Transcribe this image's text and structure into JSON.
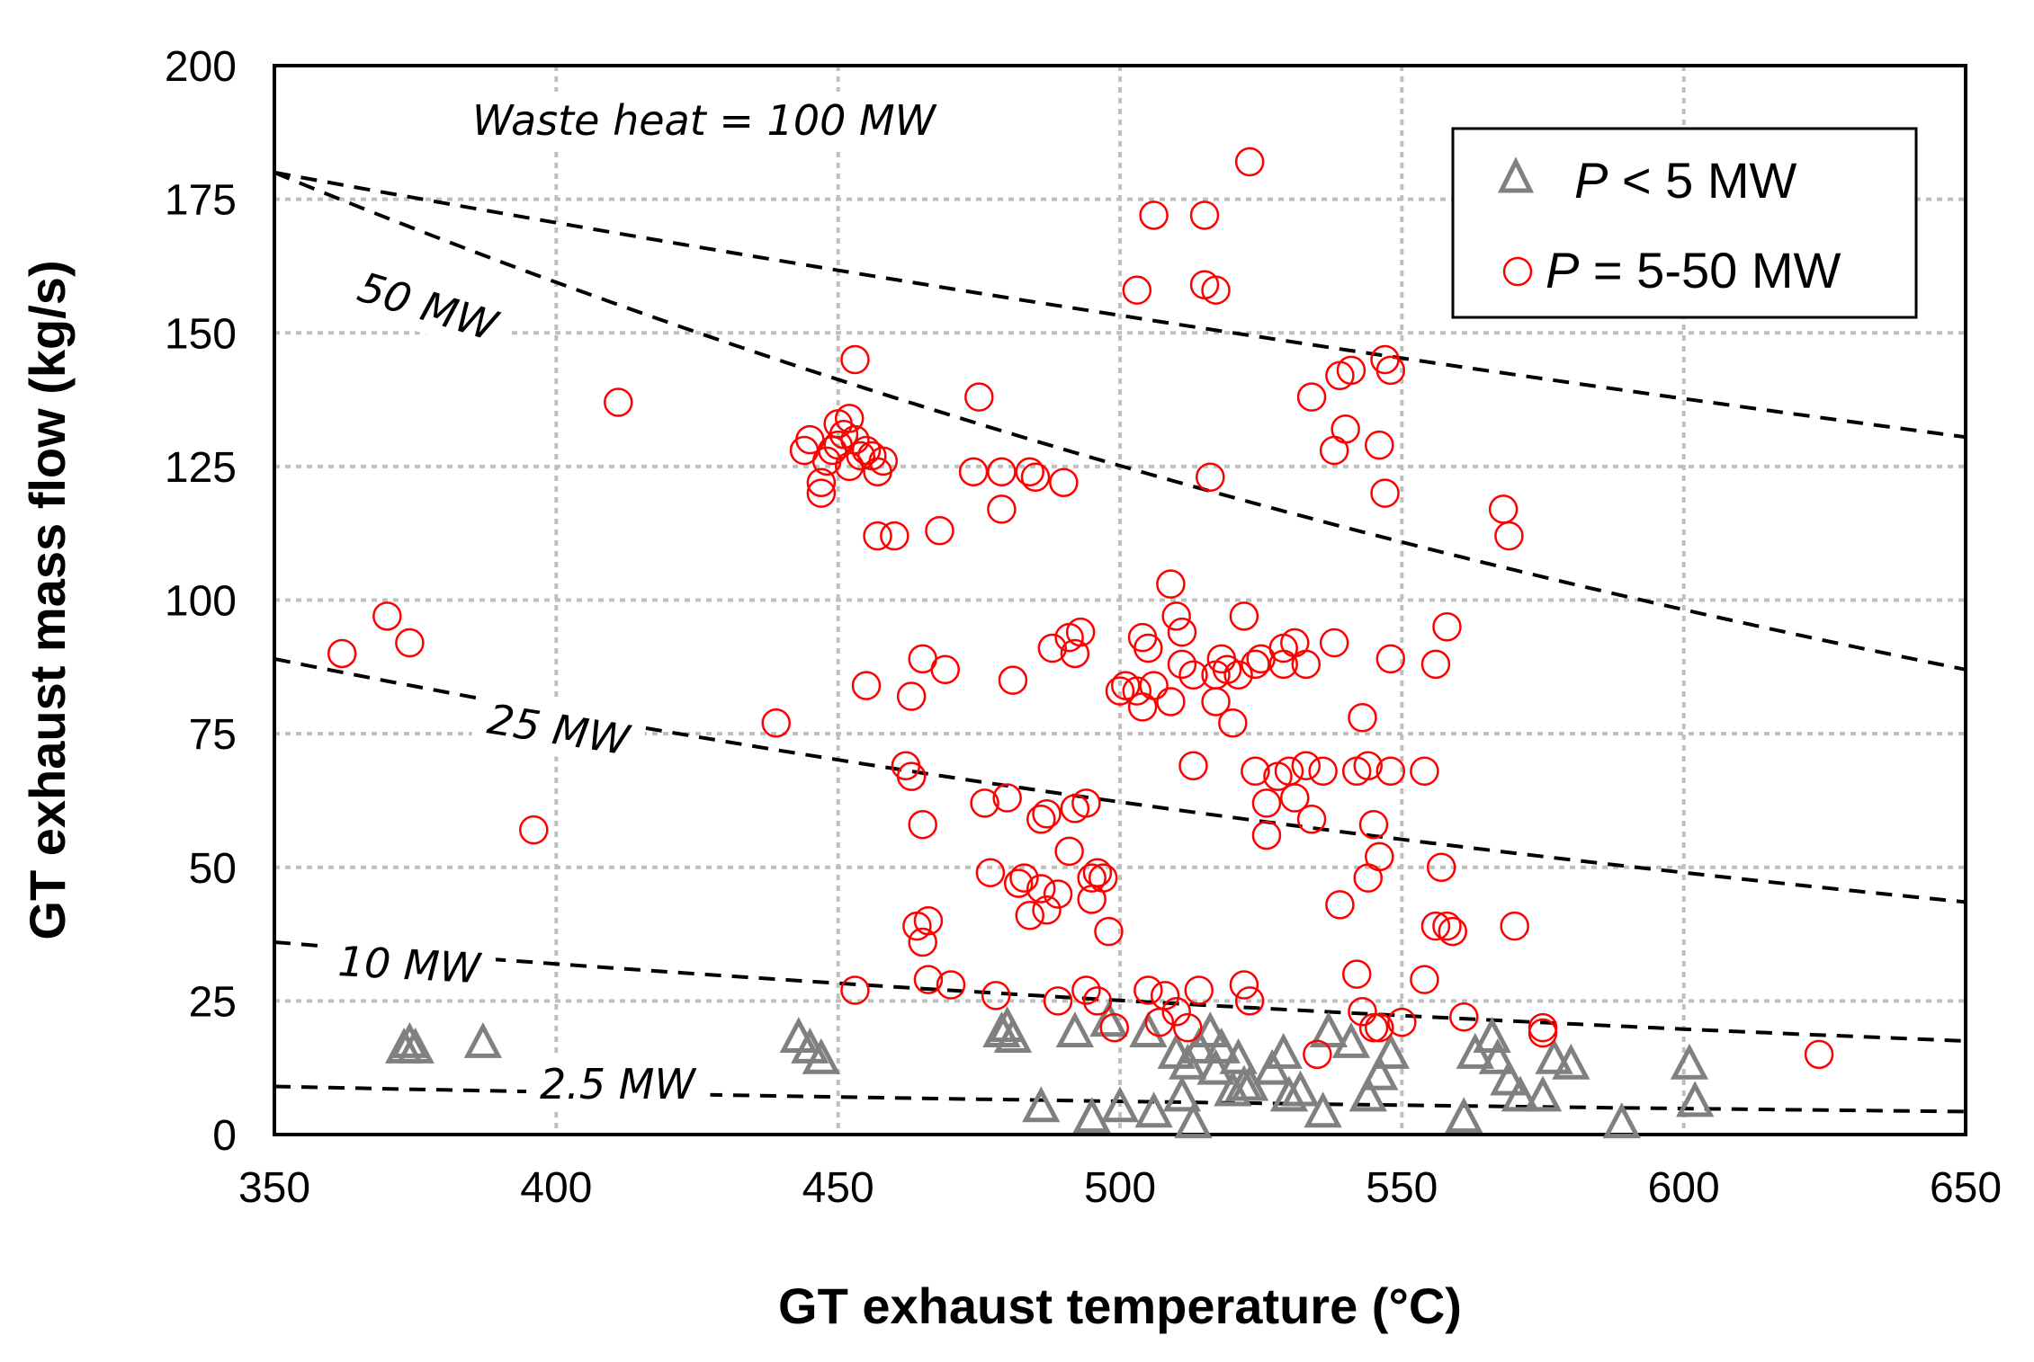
{
  "chart_data": {
    "type": "scatter",
    "title": "",
    "xlabel": "GT exhaust temperature (°C)",
    "ylabel": "GT exhaust mass flow (kg/s)",
    "xlim": [
      350,
      650
    ],
    "ylim": [
      0,
      200
    ],
    "xticks": [
      350,
      400,
      450,
      500,
      550,
      600,
      650
    ],
    "yticks": [
      0,
      25,
      50,
      75,
      100,
      125,
      150,
      175,
      200
    ],
    "grid": true,
    "legend": {
      "placement": "top-right",
      "entries": [
        {
          "symbol": "triangle",
          "label_var": "P",
          "label_rest": " < 5 MW",
          "color": "#808080"
        },
        {
          "symbol": "circle",
          "label_var": "P",
          "label_rest": " = 5-50 MW",
          "color": "#ff0000"
        }
      ]
    },
    "reference_curves": [
      {
        "label": "Waste heat = 100 MW",
        "x": [
          350,
          650
        ],
        "y": [
          180,
          130.5
        ]
      },
      {
        "label": "50 MW",
        "x": [
          350,
          650
        ],
        "y": [
          180,
          87
        ]
      },
      {
        "label": "25 MW",
        "x": [
          350,
          650
        ],
        "y": [
          89,
          43.5
        ]
      },
      {
        "label": "10 MW",
        "x": [
          350,
          650
        ],
        "y": [
          36,
          17.5
        ]
      },
      {
        "label": "2.5 MW",
        "x": [
          350,
          650
        ],
        "y": [
          9,
          4.3
        ]
      }
    ],
    "series": [
      {
        "name": "P < 5 MW",
        "marker": "triangle",
        "color": "#808080",
        "points": [
          [
            373,
            16
          ],
          [
            374,
            17
          ],
          [
            375,
            16
          ],
          [
            387,
            17
          ],
          [
            443,
            18
          ],
          [
            445,
            16
          ],
          [
            447,
            14
          ],
          [
            479,
            19
          ],
          [
            480,
            20
          ],
          [
            481,
            18
          ],
          [
            486,
            5
          ],
          [
            492,
            19
          ],
          [
            495,
            3
          ],
          [
            498,
            21
          ],
          [
            500,
            5
          ],
          [
            505,
            19
          ],
          [
            506,
            4
          ],
          [
            510,
            15
          ],
          [
            511,
            7
          ],
          [
            512,
            13
          ],
          [
            513,
            2
          ],
          [
            514,
            16
          ],
          [
            516,
            19
          ],
          [
            517,
            12
          ],
          [
            518,
            16
          ],
          [
            520,
            8
          ],
          [
            521,
            14
          ],
          [
            522,
            9
          ],
          [
            523,
            9
          ],
          [
            527,
            12
          ],
          [
            529,
            15
          ],
          [
            530,
            7
          ],
          [
            532,
            8
          ],
          [
            536,
            4
          ],
          [
            537,
            19
          ],
          [
            541,
            17
          ],
          [
            544,
            7
          ],
          [
            546,
            11
          ],
          [
            548,
            15
          ],
          [
            561,
            3
          ],
          [
            563,
            15
          ],
          [
            566,
            18
          ],
          [
            567,
            14
          ],
          [
            569,
            10
          ],
          [
            571,
            7
          ],
          [
            575,
            7
          ],
          [
            577,
            14
          ],
          [
            580,
            13
          ],
          [
            589,
            2
          ],
          [
            601,
            13
          ],
          [
            602,
            6
          ]
        ]
      },
      {
        "name": "P = 5-50 MW",
        "marker": "circle",
        "color": "#ff0000",
        "points": [
          [
            362,
            90
          ],
          [
            370,
            97
          ],
          [
            374,
            92
          ],
          [
            396,
            57
          ],
          [
            411,
            137
          ],
          [
            439,
            77
          ],
          [
            444,
            128
          ],
          [
            445,
            130
          ],
          [
            447,
            120
          ],
          [
            448,
            126
          ],
          [
            449,
            128
          ],
          [
            450,
            129
          ],
          [
            451,
            131
          ],
          [
            452,
            125
          ],
          [
            453,
            130
          ],
          [
            454,
            127
          ],
          [
            455,
            128
          ],
          [
            456,
            127
          ],
          [
            457,
            124
          ],
          [
            458,
            126
          ],
          [
            453,
            145
          ],
          [
            450,
            133
          ],
          [
            447,
            122
          ],
          [
            452,
            134
          ],
          [
            453,
            27
          ],
          [
            455,
            84
          ],
          [
            457,
            112
          ],
          [
            460,
            112
          ],
          [
            462,
            69
          ],
          [
            463,
            67
          ],
          [
            463,
            82
          ],
          [
            464,
            39
          ],
          [
            465,
            36
          ],
          [
            465,
            58
          ],
          [
            465,
            89
          ],
          [
            466,
            40
          ],
          [
            466,
            29
          ],
          [
            468,
            113
          ],
          [
            469,
            87
          ],
          [
            470,
            28
          ],
          [
            474,
            124
          ],
          [
            475,
            138
          ],
          [
            476,
            62
          ],
          [
            477,
            49
          ],
          [
            478,
            26
          ],
          [
            479,
            117
          ],
          [
            479,
            124
          ],
          [
            480,
            63
          ],
          [
            481,
            85
          ],
          [
            482,
            47
          ],
          [
            483,
            48
          ],
          [
            484,
            41
          ],
          [
            484,
            124
          ],
          [
            485,
            123
          ],
          [
            486,
            46
          ],
          [
            486,
            59
          ],
          [
            487,
            60
          ],
          [
            487,
            42
          ],
          [
            488,
            91
          ],
          [
            489,
            45
          ],
          [
            489,
            25
          ],
          [
            490,
            122
          ],
          [
            491,
            53
          ],
          [
            491,
            93
          ],
          [
            492,
            61
          ],
          [
            492,
            90
          ],
          [
            493,
            94
          ],
          [
            494,
            62
          ],
          [
            494,
            27
          ],
          [
            495,
            48
          ],
          [
            495,
            44
          ],
          [
            496,
            49
          ],
          [
            496,
            25
          ],
          [
            497,
            48
          ],
          [
            498,
            38
          ],
          [
            499,
            20
          ],
          [
            500,
            83
          ],
          [
            501,
            84
          ],
          [
            503,
            83
          ],
          [
            503,
            158
          ],
          [
            504,
            80
          ],
          [
            504,
            93
          ],
          [
            505,
            91
          ],
          [
            505,
            27
          ],
          [
            506,
            172
          ],
          [
            506,
            84
          ],
          [
            507,
            21
          ],
          [
            508,
            26
          ],
          [
            509,
            81
          ],
          [
            509,
            103
          ],
          [
            510,
            23
          ],
          [
            510,
            97
          ],
          [
            511,
            88
          ],
          [
            511,
            94
          ],
          [
            512,
            20
          ],
          [
            513,
            86
          ],
          [
            513,
            69
          ],
          [
            514,
            27
          ],
          [
            515,
            159
          ],
          [
            515,
            172
          ],
          [
            516,
            123
          ],
          [
            517,
            158
          ],
          [
            517,
            86
          ],
          [
            517,
            81
          ],
          [
            518,
            89
          ],
          [
            519,
            87
          ],
          [
            520,
            77
          ],
          [
            521,
            86
          ],
          [
            522,
            28
          ],
          [
            522,
            97
          ],
          [
            523,
            182
          ],
          [
            523,
            25
          ],
          [
            524,
            88
          ],
          [
            524,
            68
          ],
          [
            525,
            89
          ],
          [
            526,
            62
          ],
          [
            526,
            56
          ],
          [
            528,
            67
          ],
          [
            529,
            91
          ],
          [
            529,
            88
          ],
          [
            530,
            68
          ],
          [
            531,
            92
          ],
          [
            531,
            63
          ],
          [
            533,
            88
          ],
          [
            533,
            69
          ],
          [
            534,
            138
          ],
          [
            534,
            59
          ],
          [
            535,
            15
          ],
          [
            536,
            68
          ],
          [
            538,
            92
          ],
          [
            538,
            128
          ],
          [
            539,
            142
          ],
          [
            539,
            43
          ],
          [
            540,
            132
          ],
          [
            541,
            143
          ],
          [
            542,
            30
          ],
          [
            542,
            68
          ],
          [
            543,
            78
          ],
          [
            543,
            23
          ],
          [
            544,
            48
          ],
          [
            544,
            69
          ],
          [
            545,
            58
          ],
          [
            545,
            20
          ],
          [
            546,
            20
          ],
          [
            546,
            129
          ],
          [
            546,
            52
          ],
          [
            547,
            120
          ],
          [
            547,
            145
          ],
          [
            548,
            143
          ],
          [
            548,
            89
          ],
          [
            548,
            68
          ],
          [
            550,
            21
          ],
          [
            554,
            68
          ],
          [
            554,
            29
          ],
          [
            556,
            39
          ],
          [
            556,
            88
          ],
          [
            557,
            50
          ],
          [
            558,
            95
          ],
          [
            558,
            39
          ],
          [
            559,
            38
          ],
          [
            561,
            22
          ],
          [
            568,
            117
          ],
          [
            569,
            112
          ],
          [
            570,
            39
          ],
          [
            575,
            20
          ],
          [
            575,
            19
          ],
          [
            624,
            15
          ]
        ]
      }
    ]
  }
}
